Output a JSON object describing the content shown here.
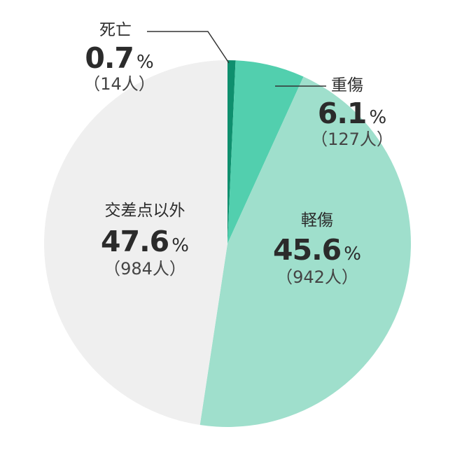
{
  "chart_data": {
    "type": "pie",
    "start_angle_deg": 0,
    "direction": "clockwise",
    "slices": [
      {
        "label": "死亡",
        "value": 0.7,
        "unit": "%",
        "count": "（14人）",
        "color": "#0f8f6e"
      },
      {
        "label": "重傷",
        "value": 6.1,
        "unit": "%",
        "count": "（127人）",
        "color": "#52cfae"
      },
      {
        "label": "軽傷",
        "value": 45.6,
        "unit": "%",
        "count": "（942人）",
        "color": "#9fdfcc"
      },
      {
        "label": "交差点以外",
        "value": 47.6,
        "unit": "%",
        "count": "（984人）",
        "color": "#efefef"
      }
    ]
  }
}
